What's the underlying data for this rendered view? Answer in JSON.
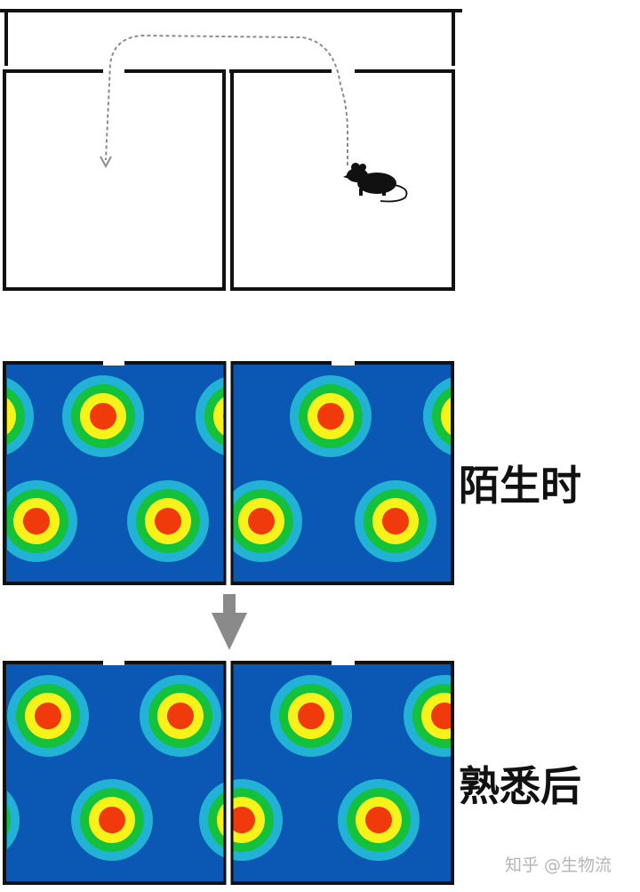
{
  "labels": {
    "unfamiliar": "陌生时",
    "familiar": "熟悉后"
  },
  "watermark": "知乎 @生物流",
  "colors": {
    "field_bg": "#0a58b4",
    "ring_cyan": "#21b2d6",
    "ring_green": "#13c13a",
    "ring_yellow": "#f6f21a",
    "core_red": "#f03a0c",
    "arrow": "#8a8a8a",
    "path": "#8c8c8c"
  },
  "icons": {
    "animal": "mouse-icon",
    "transition": "down-arrow-icon"
  }
}
